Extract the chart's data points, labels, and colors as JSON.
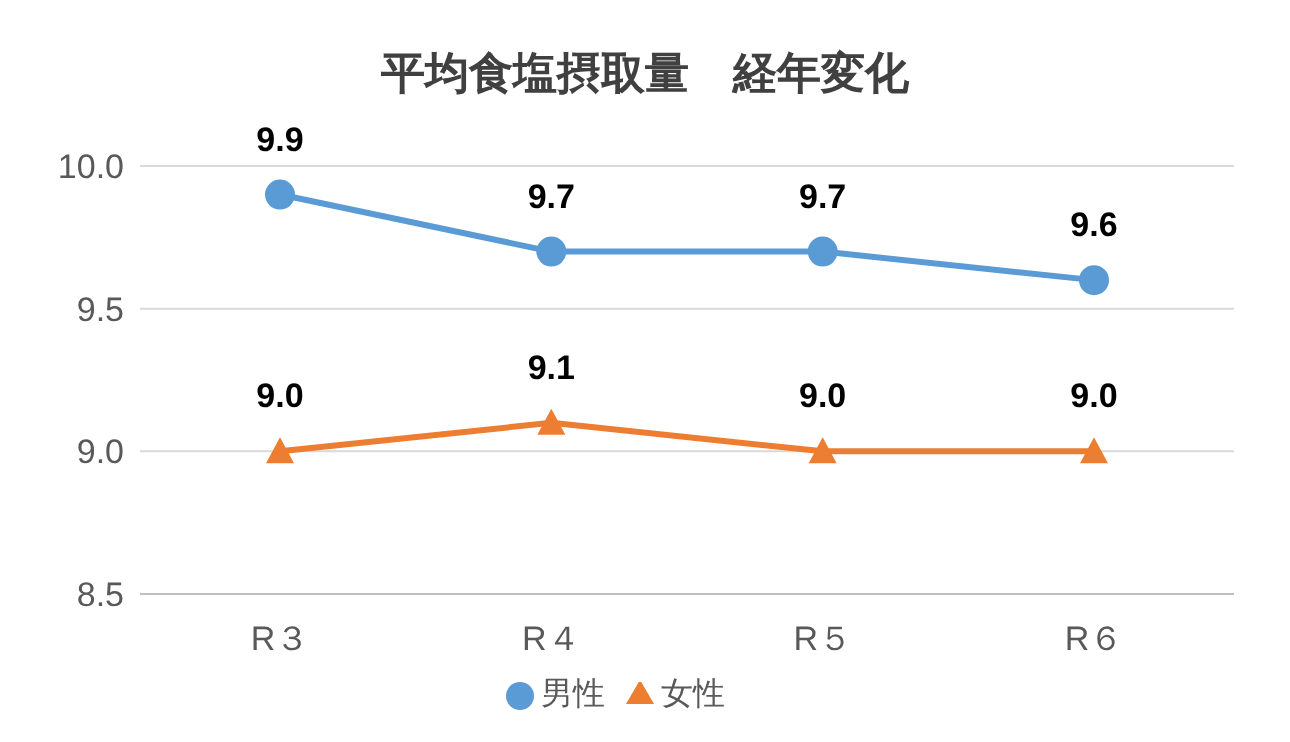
{
  "chart_data": {
    "type": "line",
    "title": "平均食塩摂取量　経年変化",
    "categories": [
      "R３",
      "R４",
      "R５",
      "R６"
    ],
    "series": [
      {
        "name": "男性",
        "color": "#5b9bd5",
        "marker": "circle",
        "values": [
          9.9,
          9.7,
          9.7,
          9.6
        ],
        "value_labels": [
          "9.9",
          "9.7",
          "9.7",
          "9.6"
        ]
      },
      {
        "name": "女性",
        "color": "#ed7d31",
        "marker": "triangle",
        "values": [
          9.0,
          9.1,
          9.0,
          9.0
        ],
        "value_labels": [
          "9.0",
          "9.1",
          "9.0",
          "9.0"
        ]
      }
    ],
    "ylim": [
      8.5,
      10.0
    ],
    "yticks": [
      {
        "value": 8.5,
        "label": "8.5"
      },
      {
        "value": 9,
        "label": "9.0"
      },
      {
        "value": 9.5,
        "label": "9.5"
      },
      {
        "value": 10,
        "label": "10.0"
      }
    ],
    "grid": "y",
    "legend": "bottom",
    "line_style": "solid"
  }
}
